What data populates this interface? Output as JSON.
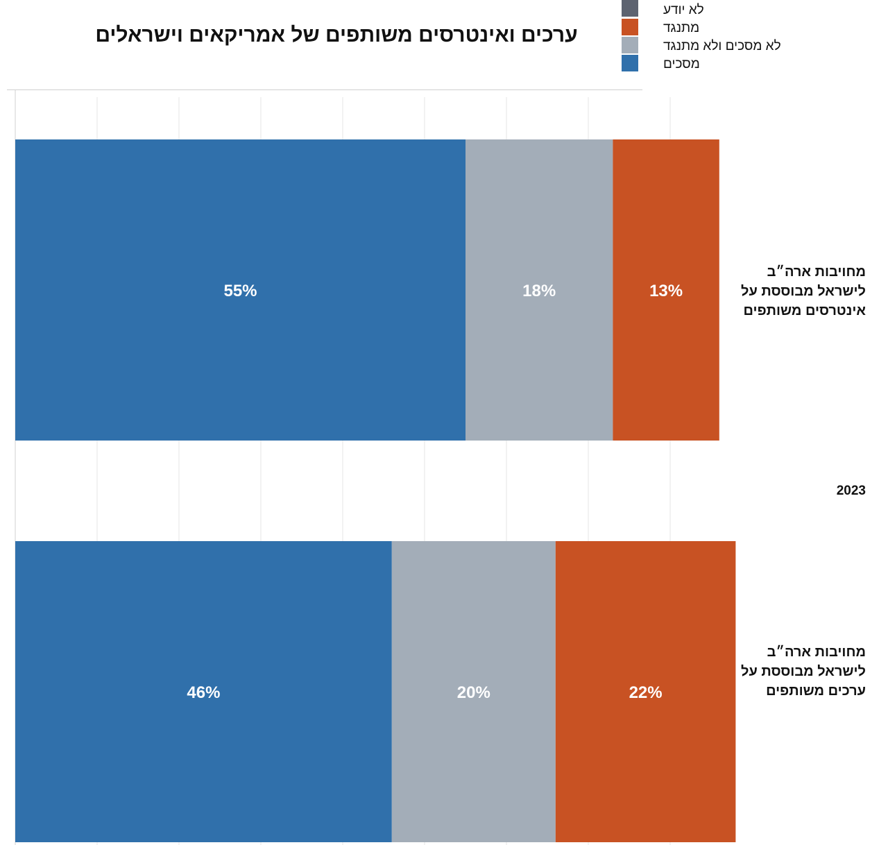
{
  "chart_data": {
    "type": "bar",
    "orientation": "horizontal",
    "stacked": true,
    "title": "ערכים ואינטרסים משותפים של אמריקאים וישראלים",
    "group_label": "2023",
    "categories": [
      "מחויבות ארה״ב לישראל מבוססת על אינטרסים משותפים",
      "מחויבות ארה״ב לישראל מבוססת על ערכים משותפים"
    ],
    "category_lines": [
      [
        "מחויבות ארה״ב",
        "לישראל מבוססת על",
        "אינטרסים משותפים"
      ],
      [
        "מחויבות ארה״ב",
        "לישראל מבוססת על",
        "ערכים משותפים"
      ]
    ],
    "series": [
      {
        "name": "מסכים",
        "values": [
          55,
          46
        ],
        "labels": [
          "55%",
          "46%"
        ],
        "color": "#3070ab"
      },
      {
        "name": "לא מסכים ולא מתנגד",
        "values": [
          18,
          20
        ],
        "labels": [
          "18%",
          "20%"
        ],
        "color": "#a3adb8"
      },
      {
        "name": "מתנגד",
        "values": [
          13,
          22
        ],
        "labels": [
          "13%",
          "22%"
        ],
        "color": "#c85223"
      },
      {
        "name": "לא יודע",
        "values": [
          0,
          0
        ],
        "labels": [
          "",
          ""
        ],
        "color": "#5d6370"
      }
    ],
    "legend_order": [
      "לא יודע",
      "מתנגד",
      "לא מסכים ולא מתנגד",
      "מסכים"
    ],
    "grid": true,
    "legend_position": "top-right"
  }
}
